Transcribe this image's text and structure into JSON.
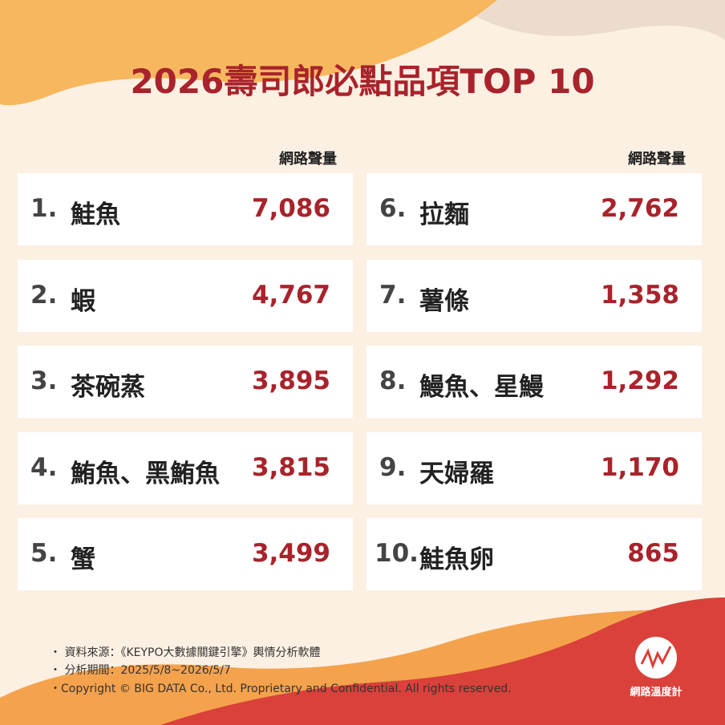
{
  "header": {
    "title": "2026壽司郎必點品項TOP 10"
  },
  "columns": [
    {
      "metric_label": "網路聲量",
      "items": [
        {
          "rank": "1.",
          "name": "鮭魚",
          "value": "7,086"
        },
        {
          "rank": "2.",
          "name": "蝦",
          "value": "4,767"
        },
        {
          "rank": "3.",
          "name": "茶碗蒸",
          "value": "3,895"
        },
        {
          "rank": "4.",
          "name": "鮪魚、黑鮪魚",
          "value": "3,815"
        },
        {
          "rank": "5.",
          "name": "蟹",
          "value": "3,499"
        }
      ]
    },
    {
      "metric_label": "網路聲量",
      "items": [
        {
          "rank": "6.",
          "name": "拉麵",
          "value": "2,762"
        },
        {
          "rank": "7.",
          "name": "薯條",
          "value": "1,358"
        },
        {
          "rank": "8.",
          "name": "鰻魚、星鰻",
          "value": "1,292"
        },
        {
          "rank": "9.",
          "name": "天婦羅",
          "value": "1,170"
        },
        {
          "rank": "10.",
          "name": "鮭魚卵",
          "value": "865"
        }
      ]
    }
  ],
  "footer": {
    "notes": [
      "・ 資料來源：《KEYPO大數據關鍵引擎》輿情分析軟體",
      "・ 分析期間：2025/5/8~2026/5/7",
      "・Copyright © BIG DATA Co., Ltd. Proprietary and Confidential. All rights reserved."
    ]
  },
  "logo": {
    "label": "網路溫度計"
  }
}
